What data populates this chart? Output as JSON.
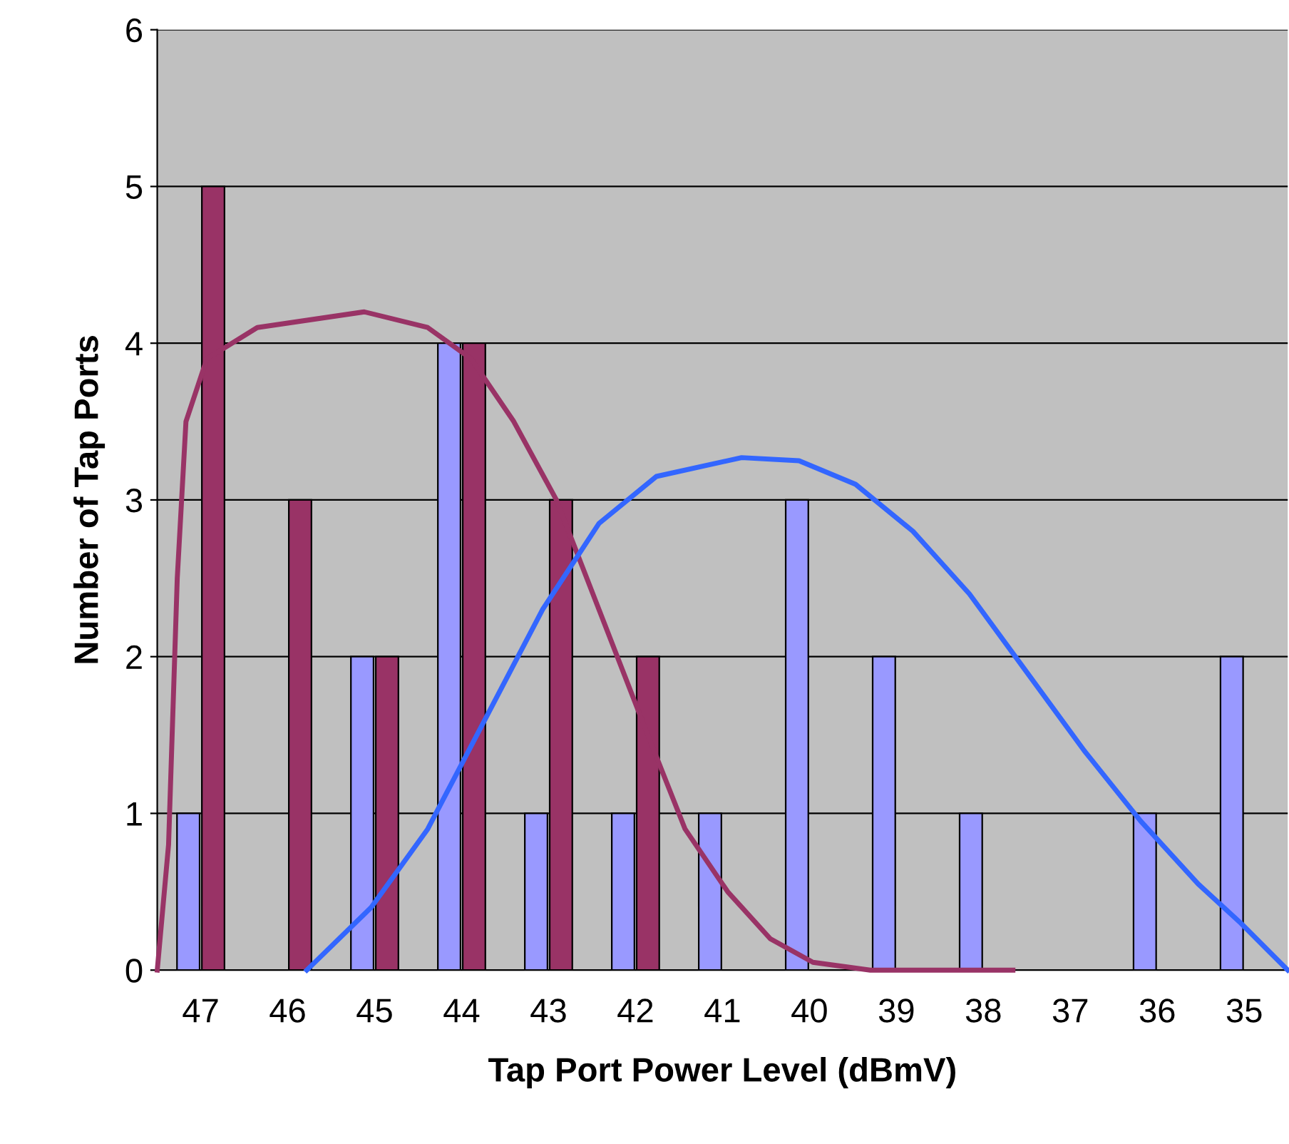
{
  "chart_data": {
    "type": "bar",
    "xlabel": "Tap Port Power Level (dBmV)",
    "ylabel": "Number of Tap Ports",
    "x": [
      47,
      46,
      45,
      44,
      43,
      42,
      41,
      40,
      39,
      38,
      37,
      36,
      35
    ],
    "xlim": [
      47.5,
      34.5
    ],
    "xticks": [
      47,
      46,
      45,
      44,
      43,
      42,
      41,
      40,
      39,
      38,
      37,
      36,
      35
    ],
    "ylim": [
      0,
      6
    ],
    "yticks": [
      0,
      1,
      2,
      3,
      4,
      5,
      6
    ],
    "grid": "y",
    "series": [
      {
        "color": "#9999ff",
        "values": [
          1,
          0,
          2,
          4,
          1,
          1,
          1,
          3,
          2,
          1,
          0,
          1,
          2
        ]
      },
      {
        "color": "#993366",
        "values": [
          5,
          3,
          2,
          4,
          3,
          2,
          0,
          0,
          0,
          0,
          0,
          0,
          0
        ]
      },
      {
        "type": "line",
        "color": "#993366",
        "x": [
          47.5,
          47.37,
          47.27,
          47.17,
          46.93,
          46.35,
          45.12,
          44.39,
          43.89,
          43.4,
          42.91,
          42.42,
          41.93,
          41.43,
          40.94,
          40.45,
          39.96,
          39.3,
          38.65,
          37.66
        ],
        "values": [
          0,
          0.8,
          2.5,
          3.5,
          3.9,
          4.1,
          4.2,
          4.1,
          3.9,
          3.5,
          3.0,
          2.3,
          1.6,
          0.9,
          0.5,
          0.2,
          0.05,
          0,
          0,
          0
        ]
      },
      {
        "type": "line",
        "color": "#3366ff",
        "x": [
          45.78,
          45.04,
          44.39,
          43.73,
          43.07,
          42.42,
          41.76,
          40.78,
          40.12,
          39.47,
          38.81,
          38.16,
          37.5,
          36.84,
          36.19,
          35.53,
          35.04,
          34.5
        ],
        "values": [
          0,
          0.4,
          0.9,
          1.6,
          2.3,
          2.85,
          3.15,
          3.27,
          3.25,
          3.1,
          2.8,
          2.4,
          1.9,
          1.4,
          0.95,
          0.55,
          0.3,
          0
        ]
      }
    ]
  }
}
